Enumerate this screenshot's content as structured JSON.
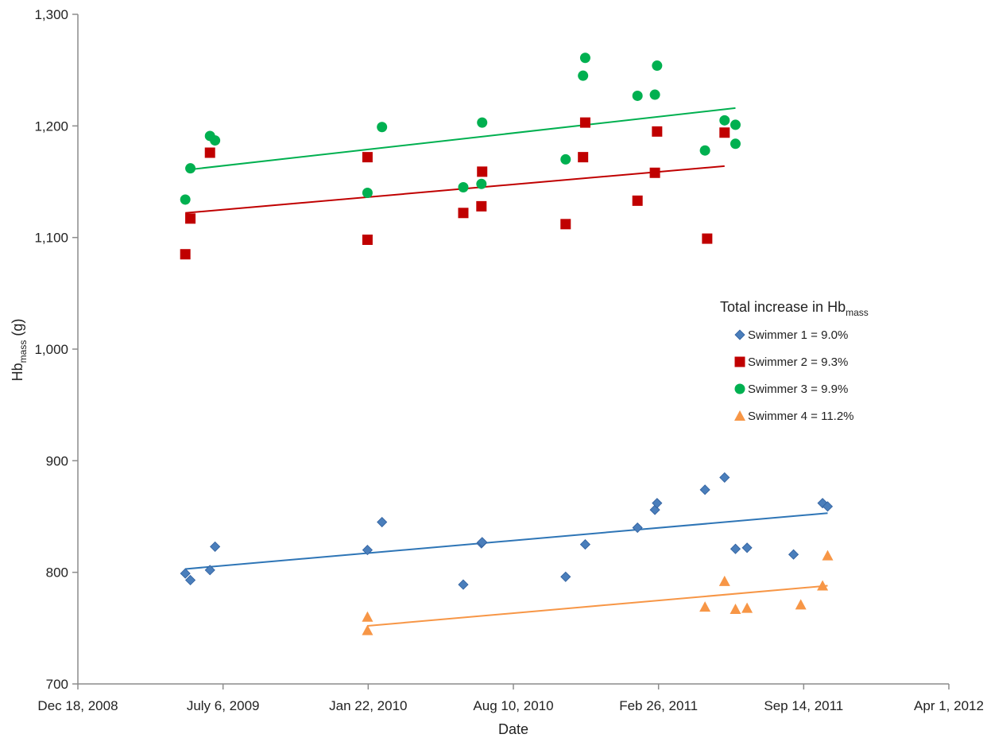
{
  "chart_data": {
    "type": "scatter",
    "x_axis": {
      "label": "Date",
      "tick_labels": [
        "Dec 18, 2008",
        "July 6, 2009",
        "Jan 22, 2010",
        "Aug 10, 2010",
        "Feb 26, 2011",
        "Sep 14, 2011",
        "Apr 1, 2012"
      ],
      "tick_dates": [
        "2008-12-18",
        "2009-07-06",
        "2010-01-22",
        "2010-08-10",
        "2011-02-26",
        "2011-09-14",
        "2012-04-01"
      ],
      "range": [
        "2008-12-18",
        "2012-04-01"
      ]
    },
    "y_axis": {
      "label_main": "Hb",
      "label_sub": "mass",
      "label_unit": " (g)",
      "tick_labels": [
        "700",
        "800",
        "900",
        "1,000",
        "1,100",
        "1,200",
        "1,300"
      ],
      "tick_values": [
        700,
        800,
        900,
        1000,
        1100,
        1200,
        1300
      ],
      "range": [
        700,
        1300
      ]
    },
    "grid": false,
    "legend": {
      "placement": "right-middle",
      "title_main": "Total increase in Hb",
      "title_sub": "mass"
    },
    "series": [
      {
        "name": "Swimmer 1 = 9.0%",
        "marker": "diamond",
        "color": "#4a7ebb",
        "line_color": "#2e75b6",
        "points": [
          {
            "x": "2009-05-15",
            "y": 799
          },
          {
            "x": "2009-05-22",
            "y": 793
          },
          {
            "x": "2009-06-18",
            "y": 802
          },
          {
            "x": "2009-06-25",
            "y": 823
          },
          {
            "x": "2010-01-21",
            "y": 820
          },
          {
            "x": "2010-02-10",
            "y": 845
          },
          {
            "x": "2010-06-02",
            "y": 789
          },
          {
            "x": "2010-06-27",
            "y": 826
          },
          {
            "x": "2010-06-28",
            "y": 827
          },
          {
            "x": "2010-10-21",
            "y": 796
          },
          {
            "x": "2010-11-17",
            "y": 825
          },
          {
            "x": "2011-01-28",
            "y": 840
          },
          {
            "x": "2011-02-21",
            "y": 856
          },
          {
            "x": "2011-02-24",
            "y": 862
          },
          {
            "x": "2011-05-01",
            "y": 874
          },
          {
            "x": "2011-05-28",
            "y": 885
          },
          {
            "x": "2011-06-12",
            "y": 821
          },
          {
            "x": "2011-06-28",
            "y": 822
          },
          {
            "x": "2011-08-31",
            "y": 816
          },
          {
            "x": "2011-10-10",
            "y": 862
          },
          {
            "x": "2011-10-17",
            "y": 859
          }
        ],
        "trend": {
          "start": {
            "x": "2009-05-15",
            "y": 803
          },
          "end": {
            "x": "2011-10-17",
            "y": 853
          }
        }
      },
      {
        "name": "Swimmer 2 = 9.3%",
        "marker": "square",
        "color": "#c00000",
        "line_color": "#c00000",
        "points": [
          {
            "x": "2009-05-15",
            "y": 1085
          },
          {
            "x": "2009-05-22",
            "y": 1117
          },
          {
            "x": "2009-06-18",
            "y": 1176
          },
          {
            "x": "2010-01-21",
            "y": 1098
          },
          {
            "x": "2010-01-21",
            "y": 1172
          },
          {
            "x": "2010-06-02",
            "y": 1122
          },
          {
            "x": "2010-06-27",
            "y": 1128
          },
          {
            "x": "2010-06-28",
            "y": 1159
          },
          {
            "x": "2010-10-21",
            "y": 1112
          },
          {
            "x": "2010-11-14",
            "y": 1172
          },
          {
            "x": "2010-11-17",
            "y": 1203
          },
          {
            "x": "2011-01-28",
            "y": 1133
          },
          {
            "x": "2011-02-21",
            "y": 1158
          },
          {
            "x": "2011-02-24",
            "y": 1195
          },
          {
            "x": "2011-05-04",
            "y": 1099
          },
          {
            "x": "2011-05-28",
            "y": 1194
          }
        ],
        "trend": {
          "start": {
            "x": "2009-05-15",
            "y": 1122
          },
          "end": {
            "x": "2011-05-28",
            "y": 1164
          }
        }
      },
      {
        "name": "Swimmer 3 = 9.9%",
        "marker": "circle",
        "color": "#00b050",
        "line_color": "#00b050",
        "points": [
          {
            "x": "2009-05-15",
            "y": 1134
          },
          {
            "x": "2009-05-22",
            "y": 1162
          },
          {
            "x": "2009-06-18",
            "y": 1191
          },
          {
            "x": "2009-06-25",
            "y": 1187
          },
          {
            "x": "2010-01-21",
            "y": 1140
          },
          {
            "x": "2010-02-10",
            "y": 1199
          },
          {
            "x": "2010-06-02",
            "y": 1145
          },
          {
            "x": "2010-06-27",
            "y": 1148
          },
          {
            "x": "2010-06-28",
            "y": 1203
          },
          {
            "x": "2010-10-21",
            "y": 1170
          },
          {
            "x": "2010-11-14",
            "y": 1245
          },
          {
            "x": "2010-11-17",
            "y": 1261
          },
          {
            "x": "2011-01-28",
            "y": 1227
          },
          {
            "x": "2011-02-21",
            "y": 1228
          },
          {
            "x": "2011-02-24",
            "y": 1254
          },
          {
            "x": "2011-05-01",
            "y": 1178
          },
          {
            "x": "2011-05-28",
            "y": 1205
          },
          {
            "x": "2011-06-12",
            "y": 1201
          },
          {
            "x": "2011-06-12",
            "y": 1184
          }
        ],
        "trend": {
          "start": {
            "x": "2009-05-22",
            "y": 1161
          },
          "end": {
            "x": "2011-06-12",
            "y": 1216
          }
        }
      },
      {
        "name": "Swimmer 4 = 11.2%",
        "marker": "triangle",
        "color": "#f79646",
        "line_color": "#f79646",
        "points": [
          {
            "x": "2010-01-21",
            "y": 760
          },
          {
            "x": "2010-01-21",
            "y": 748
          },
          {
            "x": "2011-05-01",
            "y": 769
          },
          {
            "x": "2011-05-28",
            "y": 792
          },
          {
            "x": "2011-06-12",
            "y": 767
          },
          {
            "x": "2011-06-28",
            "y": 768
          },
          {
            "x": "2011-09-10",
            "y": 771
          },
          {
            "x": "2011-10-10",
            "y": 788
          },
          {
            "x": "2011-10-17",
            "y": 815
          }
        ],
        "trend": {
          "start": {
            "x": "2010-01-21",
            "y": 752
          },
          "end": {
            "x": "2011-10-17",
            "y": 788
          }
        }
      }
    ]
  }
}
